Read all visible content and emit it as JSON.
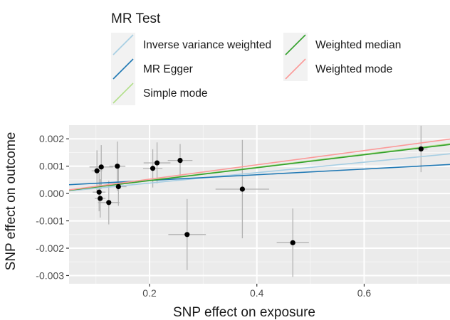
{
  "chart_data": {
    "type": "scatter",
    "xlabel": "SNP effect on exposure",
    "ylabel": "SNP effect on outcome",
    "xlim": [
      0.05,
      0.76
    ],
    "ylim": [
      -0.0033,
      0.0025
    ],
    "x_ticks": [
      {
        "value": 0.2,
        "label": "0.2"
      },
      {
        "value": 0.4,
        "label": "0.4"
      },
      {
        "value": 0.6,
        "label": "0.6"
      }
    ],
    "y_ticks": [
      {
        "value": 0.002,
        "label": "0.002"
      },
      {
        "value": 0.001,
        "label": "0.001"
      },
      {
        "value": 0.0,
        "label": "0.000"
      },
      {
        "value": -0.001,
        "label": "-0.001"
      },
      {
        "value": -0.002,
        "label": "-0.002"
      },
      {
        "value": -0.003,
        "label": "-0.003"
      }
    ],
    "grid": true,
    "background": "#ebebeb",
    "legend": {
      "title": "MR Test",
      "position": "top",
      "entries": [
        {
          "label": "Inverse variance weighted",
          "color": "#a6cee3"
        },
        {
          "label": "MR Egger",
          "color": "#1f78b4"
        },
        {
          "label": "Simple mode",
          "color": "#b2df8a"
        },
        {
          "label": "Weighted median",
          "color": "#33a02c"
        },
        {
          "label": "Weighted mode",
          "color": "#fb9a99"
        }
      ]
    },
    "points": [
      {
        "x": 0.102,
        "y": 0.00083,
        "xerr": 0.01,
        "yerr": 0.00075
      },
      {
        "x": 0.106,
        "y": 5e-05,
        "xerr": 0.012,
        "yerr": 0.0007
      },
      {
        "x": 0.108,
        "y": -0.00018,
        "xerr": 0.01,
        "yerr": 0.0007
      },
      {
        "x": 0.11,
        "y": 0.00097,
        "xerr": 0.022,
        "yerr": 0.0008
      },
      {
        "x": 0.124,
        "y": -0.00033,
        "xerr": 0.02,
        "yerr": 0.0008
      },
      {
        "x": 0.14,
        "y": 0.001,
        "xerr": 0.015,
        "yerr": 0.0009
      },
      {
        "x": 0.142,
        "y": 0.00025,
        "xerr": 0.015,
        "yerr": 0.0007
      },
      {
        "x": 0.206,
        "y": 0.00092,
        "xerr": 0.018,
        "yerr": 0.0007
      },
      {
        "x": 0.214,
        "y": 0.00112,
        "xerr": 0.025,
        "yerr": 0.00075
      },
      {
        "x": 0.257,
        "y": 0.00121,
        "xerr": 0.023,
        "yerr": 0.0006
      },
      {
        "x": 0.27,
        "y": -0.0015,
        "xerr": 0.035,
        "yerr": 0.0013
      },
      {
        "x": 0.373,
        "y": 0.00016,
        "xerr": 0.05,
        "yerr": 0.0018
      },
      {
        "x": 0.467,
        "y": -0.0018,
        "xerr": 0.03,
        "yerr": 0.00125
      },
      {
        "x": 0.706,
        "y": 0.00163,
        "xerr": 0.012,
        "yerr": 0.00085
      }
    ],
    "lines": [
      {
        "method": "Inverse variance weighted",
        "intercept": 0.0,
        "slope": 0.00191,
        "color": "#a6cee3"
      },
      {
        "method": "MR Egger",
        "intercept": 0.00027,
        "slope": 0.00104,
        "color": "#1f78b4"
      },
      {
        "method": "Simple mode",
        "intercept": 0.0,
        "slope": 0.0024,
        "color": "#b2df8a"
      },
      {
        "method": "Weighted median",
        "intercept": 0.0,
        "slope": 0.00236,
        "color": "#33a02c"
      },
      {
        "method": "Weighted mode",
        "intercept": 0.0,
        "slope": 0.00262,
        "color": "#fb9a99"
      }
    ]
  }
}
